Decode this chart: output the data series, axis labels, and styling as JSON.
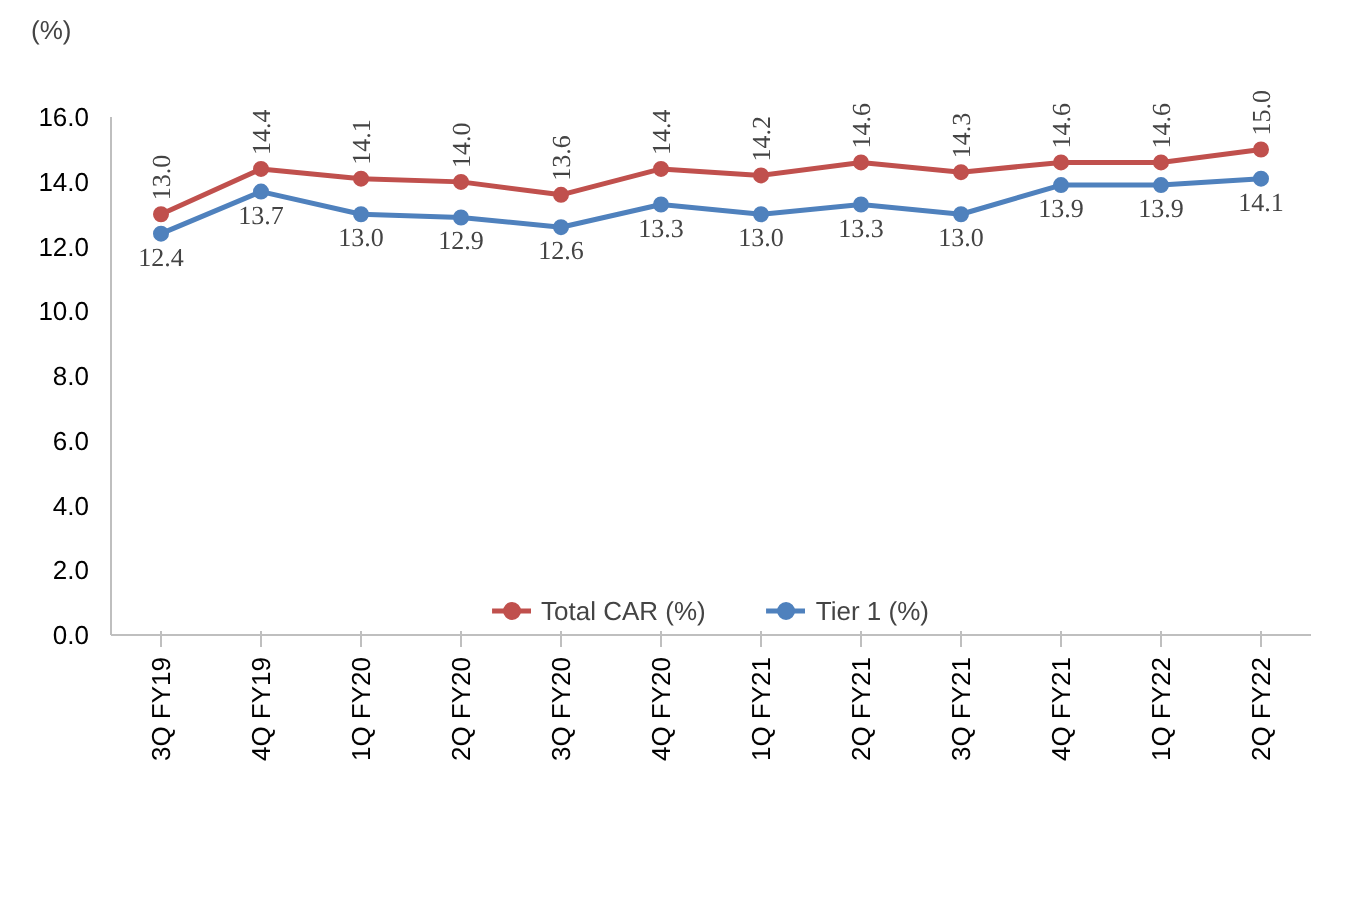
{
  "chart_data": {
    "type": "line",
    "ylabel": "(%)",
    "categories": [
      "3Q FY19",
      "4Q FY19",
      "1Q FY20",
      "2Q FY20",
      "3Q FY20",
      "4Q FY20",
      "1Q FY21",
      "2Q FY21",
      "3Q FY21",
      "4Q FY21",
      "1Q FY22",
      "2Q FY22"
    ],
    "series": [
      {
        "name": "Total CAR (%)",
        "color": "#c0504d",
        "values": [
          13.0,
          14.4,
          14.1,
          14.0,
          13.6,
          14.4,
          14.2,
          14.6,
          14.3,
          14.6,
          14.6,
          15.0
        ],
        "value_labels": [
          "13.0",
          "14.4",
          "14.1",
          "14.0",
          "13.6",
          "14.4",
          "14.2",
          "14.6",
          "14.3",
          "14.6",
          "14.6",
          "15.0"
        ]
      },
      {
        "name": "Tier 1 (%)",
        "color": "#4f81bd",
        "values": [
          12.4,
          13.7,
          13.0,
          12.9,
          12.6,
          13.3,
          13.0,
          13.3,
          13.0,
          13.9,
          13.9,
          14.1
        ],
        "value_labels": [
          "12.4",
          "13.7",
          "13.0",
          "12.9",
          "12.6",
          "13.3",
          "13.0",
          "13.3",
          "13.0",
          "13.9",
          "13.9",
          "14.1"
        ]
      }
    ],
    "ylim": [
      0,
      16
    ],
    "yticks": [
      {
        "value": 0,
        "label": "0.0"
      },
      {
        "value": 2,
        "label": "2.0"
      },
      {
        "value": 4,
        "label": "4.0"
      },
      {
        "value": 6,
        "label": "6.0"
      },
      {
        "value": 8,
        "label": "8.0"
      },
      {
        "value": 10,
        "label": "10.0"
      },
      {
        "value": 12,
        "label": "12.0"
      },
      {
        "value": 14,
        "label": "14.0"
      },
      {
        "value": 16,
        "label": "16.0"
      }
    ],
    "legend": "bottom",
    "marker": "circle",
    "line_style": "solid"
  }
}
